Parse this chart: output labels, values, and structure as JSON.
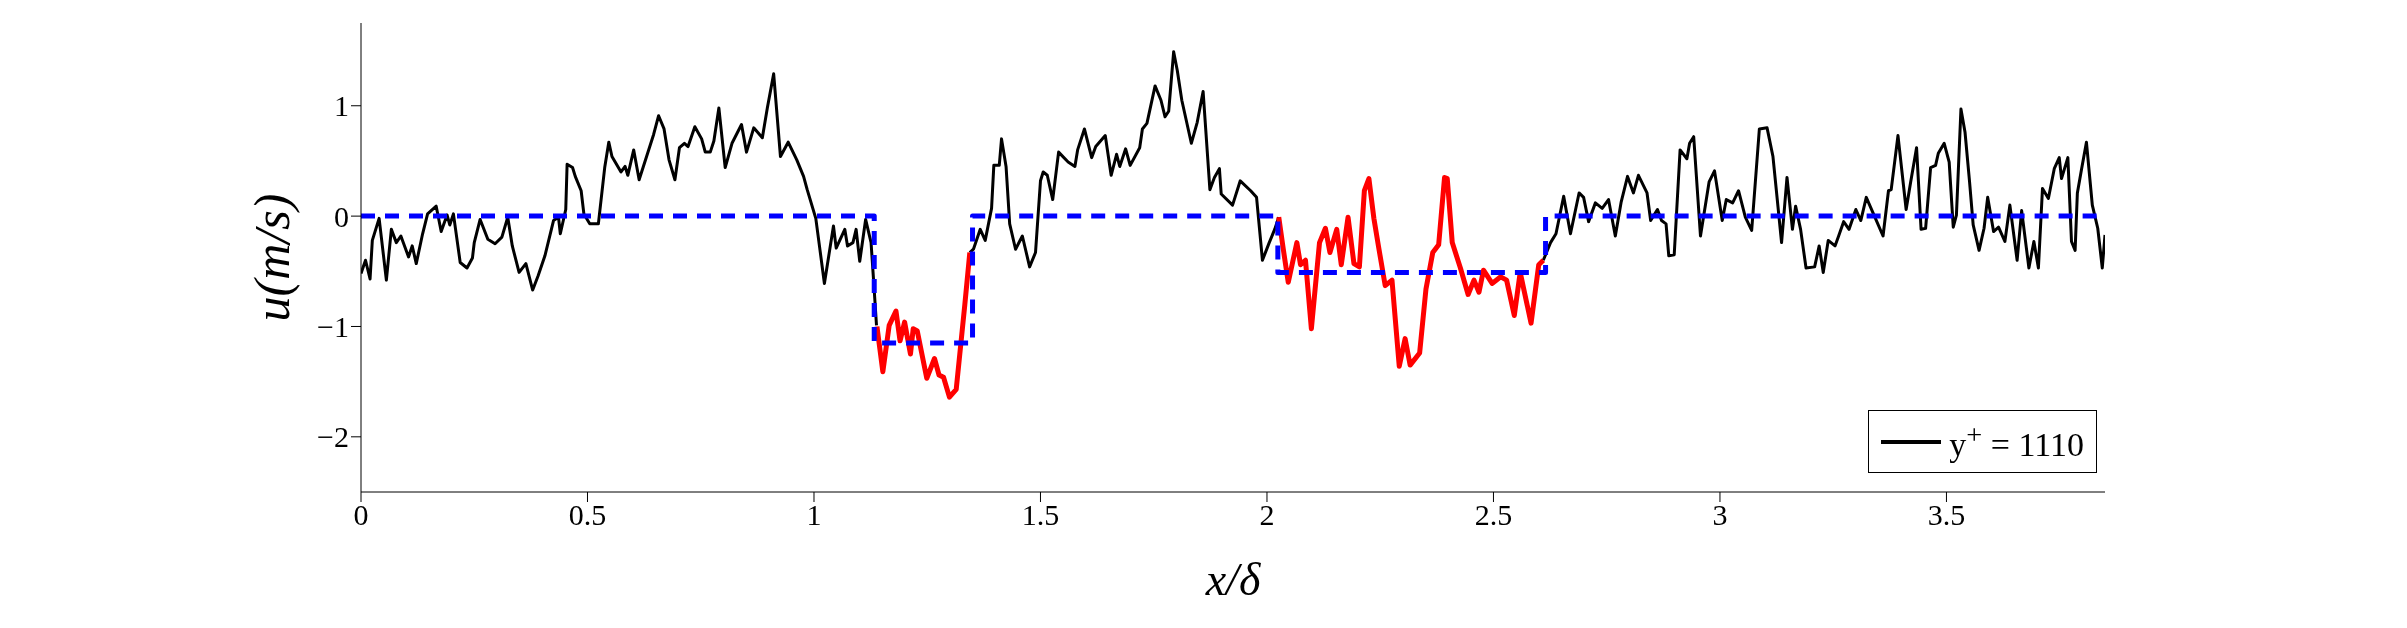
{
  "chart_data": {
    "type": "line",
    "xlabel": "x/δ",
    "ylabel": "u(m/s)",
    "xlim": [
      0,
      3.85
    ],
    "xticks": [
      0,
      0.5,
      1,
      1.5,
      2,
      2.5,
      3,
      3.5
    ],
    "ylim": [
      -2.5,
      1.75
    ],
    "yticks": [
      -2,
      -1,
      0,
      1
    ],
    "legend": "bottom right",
    "marker": "none",
    "line_style": "solid",
    "series": [
      {
        "name": "y$^{+}$ = 1110",
        "color": "#000000",
        "x": [
          0,
          0.01,
          0.02,
          0.025,
          0.04,
          0.056,
          0.067,
          0.078,
          0.088,
          0.105,
          0.113,
          0.122,
          0.136,
          0.147,
          0.166,
          0.177,
          0.19,
          0.196,
          0.204,
          0.219,
          0.234,
          0.246,
          0.25,
          0.263,
          0.28,
          0.296,
          0.311,
          0.324,
          0.334,
          0.349,
          0.364,
          0.379,
          0.391,
          0.406,
          0.425,
          0.436,
          0.44,
          0.452,
          0.455,
          0.467,
          0.473,
          0.486,
          0.492,
          0.505,
          0.524,
          0.538,
          0.547,
          0.554,
          0.574,
          0.583,
          0.589,
          0.602,
          0.614,
          0.646,
          0.657,
          0.669,
          0.68,
          0.693,
          0.703,
          0.714,
          0.722,
          0.737,
          0.752,
          0.76,
          0.771,
          0.779,
          0.79,
          0.804,
          0.819,
          0.84,
          0.851,
          0.867,
          0.886,
          0.897,
          0.911,
          0.926,
          0.943,
          0.962,
          0.977,
          0.985,
          1.004,
          1.023,
          1.043,
          1.049,
          1.068,
          1.074,
          1.086,
          1.093,
          1.101,
          1.114,
          1.126,
          1.132,
          1.138,
          1.25,
          1.344,
          1.352,
          1.367,
          1.378,
          1.392,
          1.397,
          1.409,
          1.414,
          1.424,
          1.432,
          1.445,
          1.46,
          1.476,
          1.489,
          1.5,
          1.506,
          1.515,
          1.527,
          1.54,
          1.561,
          1.576,
          1.582,
          1.597,
          1.613,
          1.622,
          1.643,
          1.656,
          1.668,
          1.675,
          1.688,
          1.698,
          1.719,
          1.725,
          1.735,
          1.753,
          1.766,
          1.775,
          1.783,
          1.794,
          1.802,
          1.812,
          1.833,
          1.846,
          1.859,
          1.874,
          1.884,
          1.895,
          1.899,
          1.924,
          1.941,
          1.964,
          1.977,
          1.99,
          2.005,
          2.017,
          2.026,
          2.3,
          2.61,
          2.626,
          2.638,
          2.655,
          2.67,
          2.689,
          2.699,
          2.71,
          2.725,
          2.74,
          2.754,
          2.769,
          2.782,
          2.796,
          2.809,
          2.82,
          2.839,
          2.847,
          2.862,
          2.871,
          2.881,
          2.887,
          2.899,
          2.912,
          2.927,
          2.933,
          2.942,
          2.957,
          2.976,
          2.988,
          3.005,
          3.014,
          3.028,
          3.041,
          3.056,
          3.07,
          3.087,
          3.104,
          3.117,
          3.136,
          3.148,
          3.16,
          3.167,
          3.178,
          3.19,
          3.209,
          3.219,
          3.228,
          3.239,
          3.254,
          3.262,
          3.273,
          3.285,
          3.3,
          3.311,
          3.323,
          3.342,
          3.36,
          3.372,
          3.378,
          3.393,
          3.411,
          3.421,
          3.434,
          3.444,
          3.454,
          3.465,
          3.476,
          3.482,
          3.495,
          3.506,
          3.515,
          3.522,
          3.532,
          3.541,
          3.551,
          3.559,
          3.572,
          3.583,
          3.591,
          3.604,
          3.615,
          3.629,
          3.64,
          3.656,
          3.666,
          3.682,
          3.693,
          3.703,
          3.712,
          3.725,
          3.738,
          3.749,
          3.754,
          3.768,
          3.776,
          3.784,
          3.789,
          3.798,
          3.809,
          3.822,
          3.834,
          3.844,
          3.85
        ],
        "values": [
          -0.52,
          -0.4,
          -0.57,
          -0.22,
          -0.02,
          -0.58,
          -0.12,
          -0.24,
          -0.18,
          -0.37,
          -0.27,
          -0.43,
          -0.16,
          0.02,
          0.09,
          -0.14,
          0.01,
          -0.08,
          0.02,
          -0.42,
          -0.47,
          -0.38,
          -0.24,
          -0.03,
          -0.21,
          -0.25,
          -0.19,
          -0.01,
          -0.27,
          -0.51,
          -0.43,
          -0.67,
          -0.54,
          -0.36,
          -0.04,
          -0.01,
          -0.16,
          0.06,
          0.47,
          0.44,
          0.36,
          0.23,
          0.02,
          -0.07,
          -0.07,
          0.44,
          0.67,
          0.54,
          0.4,
          0.45,
          0.37,
          0.6,
          0.33,
          0.74,
          0.91,
          0.79,
          0.51,
          0.33,
          0.62,
          0.66,
          0.63,
          0.81,
          0.7,
          0.58,
          0.58,
          0.68,
          0.98,
          0.44,
          0.66,
          0.83,
          0.58,
          0.8,
          0.71,
          0.98,
          1.29,
          0.54,
          0.67,
          0.51,
          0.36,
          0.24,
          -0.02,
          -0.61,
          -0.09,
          -0.29,
          -0.12,
          -0.27,
          -0.24,
          -0.12,
          -0.41,
          -0.03,
          -0.24,
          -0.61,
          -0.99,
          null,
          -0.33,
          -0.3,
          -0.12,
          -0.22,
          0.07,
          0.46,
          0.46,
          0.7,
          0.45,
          -0.07,
          -0.3,
          -0.18,
          -0.46,
          -0.33,
          0.32,
          0.4,
          0.37,
          0.15,
          0.58,
          0.49,
          0.45,
          0.6,
          0.79,
          0.53,
          0.63,
          0.73,
          0.37,
          0.56,
          0.45,
          0.61,
          0.46,
          0.62,
          0.79,
          0.84,
          1.18,
          1.05,
          0.9,
          0.95,
          1.49,
          1.32,
          1.05,
          0.66,
          0.85,
          1.13,
          0.24,
          0.35,
          0.43,
          0.2,
          0.1,
          0.32,
          0.23,
          0.17,
          -0.4,
          -0.24,
          -0.12,
          -0.01,
          null,
          -0.4,
          -0.24,
          -0.16,
          0.18,
          -0.16,
          0.21,
          0.17,
          -0.05,
          0.12,
          0.07,
          0.15,
          -0.18,
          0.13,
          0.36,
          0.21,
          0.37,
          0.21,
          -0.04,
          0.06,
          -0.04,
          -0.07,
          -0.36,
          -0.35,
          0.6,
          0.52,
          0.66,
          0.72,
          -0.18,
          0.31,
          0.41,
          -0.04,
          0.15,
          0.12,
          0.23,
          -0.01,
          -0.13,
          0.79,
          0.8,
          0.54,
          -0.24,
          0.35,
          -0.12,
          0.09,
          -0.12,
          -0.47,
          -0.46,
          -0.27,
          -0.51,
          -0.22,
          -0.27,
          -0.18,
          -0.05,
          -0.12,
          0.06,
          -0.04,
          0.17,
          -0.01,
          -0.18,
          0.23,
          0.24,
          0.73,
          0.06,
          0.31,
          0.62,
          -0.12,
          -0.11,
          0.44,
          0.46,
          0.57,
          0.66,
          0.49,
          -0.1,
          0.01,
          0.97,
          0.76,
          0.31,
          -0.08,
          -0.31,
          -0.11,
          0.17,
          -0.14,
          -0.1,
          -0.23,
          0.1,
          -0.4,
          0.05,
          -0.47,
          -0.23,
          -0.47,
          0.25,
          0.16,
          0.43,
          0.53,
          0.34,
          0.53,
          -0.23,
          -0.31,
          0.21,
          0.42,
          0.67,
          0.1,
          -0.11,
          -0.47,
          -0.17
        ]
      },
      {
        "color": "#ff0000",
        "x": [
          1.139,
          1.152,
          1.166,
          1.181,
          1.19,
          1.2,
          1.213,
          1.219,
          1.228,
          1.249,
          1.266,
          1.276,
          1.286,
          1.299,
          1.314,
          1.333,
          1.344,
          1.6,
          2.026,
          2.036,
          2.047,
          2.066,
          2.074,
          2.085,
          2.098,
          2.116,
          2.129,
          2.139,
          2.154,
          2.164,
          2.179,
          2.192,
          2.204,
          2.215,
          2.225,
          2.236,
          2.246,
          2.261,
          2.276,
          2.292,
          2.305,
          2.316,
          2.337,
          2.351,
          2.366,
          2.379,
          2.392,
          2.398,
          2.409,
          2.427,
          2.444,
          2.457,
          2.468,
          2.478,
          2.497,
          2.516,
          2.529,
          2.546,
          2.559,
          2.583,
          2.6,
          2.61
        ],
        "values": [
          -1.0,
          -1.41,
          -0.99,
          -0.86,
          -1.13,
          -0.96,
          -1.25,
          -1.02,
          -1.04,
          -1.47,
          -1.29,
          -1.44,
          -1.46,
          -1.64,
          -1.57,
          -0.8,
          -0.33,
          null,
          -0.01,
          -0.3,
          -0.6,
          -0.24,
          -0.44,
          -0.4,
          -1.02,
          -0.24,
          -0.11,
          -0.33,
          -0.12,
          -0.44,
          -0.01,
          -0.43,
          -0.46,
          0.23,
          0.34,
          -0.02,
          -0.27,
          -0.63,
          -0.58,
          -1.36,
          -1.11,
          -1.35,
          -1.24,
          -0.66,
          -0.33,
          -0.26,
          0.35,
          0.34,
          -0.24,
          -0.47,
          -0.71,
          -0.58,
          -0.69,
          -0.49,
          -0.61,
          -0.55,
          -0.58,
          -0.9,
          -0.51,
          -0.97,
          -0.44,
          -0.4
        ]
      },
      {
        "color": "#0000ff",
        "line_style": "dashed",
        "x": [
          0,
          1.133,
          1.133,
          1.35,
          1.35,
          2.024,
          2.024,
          2.615,
          2.615,
          3.85
        ],
        "values": [
          0,
          0,
          -1.15,
          -1.15,
          0,
          0,
          -0.51,
          -0.51,
          0,
          0
        ]
      }
    ]
  }
}
